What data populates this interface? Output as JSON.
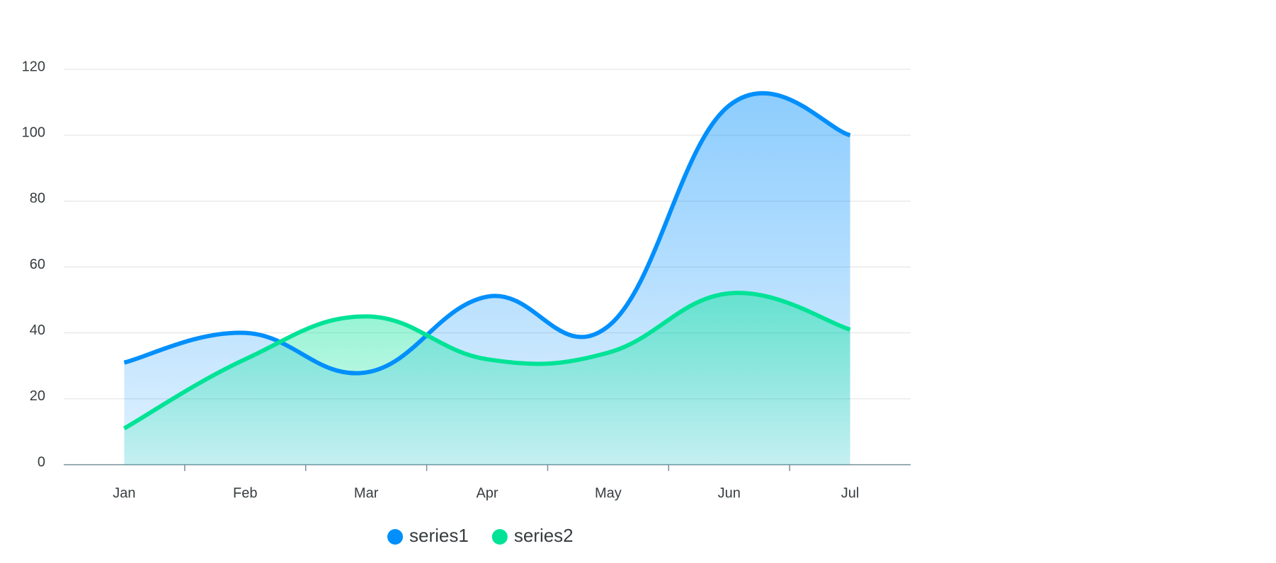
{
  "chart_data": {
    "type": "area",
    "categories": [
      "Jan",
      "Feb",
      "Mar",
      "Apr",
      "May",
      "Jun",
      "Jul"
    ],
    "series": [
      {
        "name": "series1",
        "color": "#008FFB",
        "values": [
          31,
          40,
          28,
          51,
          42,
          109,
          100
        ]
      },
      {
        "name": "series2",
        "color": "#00E396",
        "values": [
          11,
          32,
          45,
          32,
          34,
          52,
          41
        ]
      }
    ],
    "ylim": [
      0,
      120
    ],
    "yticks": [
      0,
      20,
      40,
      60,
      80,
      100,
      120
    ],
    "grid": true
  }
}
